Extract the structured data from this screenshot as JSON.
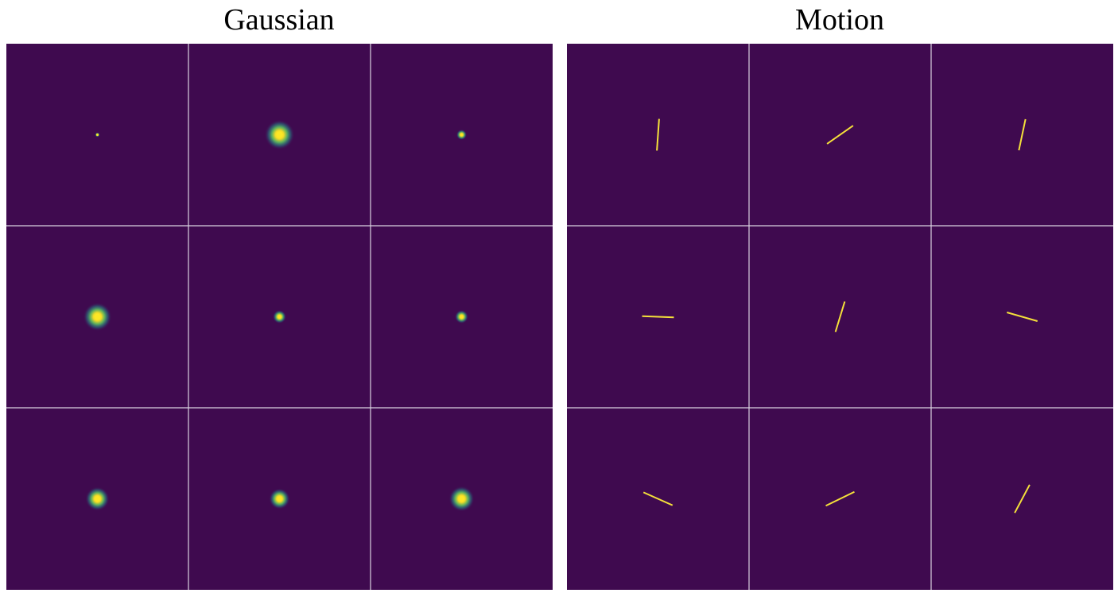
{
  "panels": [
    {
      "id": "gaussian",
      "title": "Gaussian",
      "kernel_type": "gaussian",
      "kernels": [
        {
          "row": 0,
          "col": 0,
          "sigma": 0.15
        },
        {
          "row": 0,
          "col": 1,
          "sigma": 1.0
        },
        {
          "row": 0,
          "col": 2,
          "sigma": 0.35
        },
        {
          "row": 1,
          "col": 0,
          "sigma": 0.95
        },
        {
          "row": 1,
          "col": 1,
          "sigma": 0.45
        },
        {
          "row": 1,
          "col": 2,
          "sigma": 0.45
        },
        {
          "row": 2,
          "col": 0,
          "sigma": 0.8
        },
        {
          "row": 2,
          "col": 1,
          "sigma": 0.7
        },
        {
          "row": 2,
          "col": 2,
          "sigma": 0.85
        }
      ]
    },
    {
      "id": "motion",
      "title": "Motion",
      "kernel_type": "motion",
      "kernels": [
        {
          "row": 0,
          "col": 0,
          "angle_deg": 86,
          "length": 1.0
        },
        {
          "row": 0,
          "col": 1,
          "angle_deg": 35,
          "length": 1.0
        },
        {
          "row": 0,
          "col": 2,
          "angle_deg": 78,
          "length": 1.0
        },
        {
          "row": 1,
          "col": 0,
          "angle_deg": -2,
          "length": 1.0
        },
        {
          "row": 1,
          "col": 1,
          "angle_deg": 73,
          "length": 1.0
        },
        {
          "row": 1,
          "col": 2,
          "angle_deg": -16,
          "length": 1.0
        },
        {
          "row": 2,
          "col": 0,
          "angle_deg": -24,
          "length": 1.0
        },
        {
          "row": 2,
          "col": 1,
          "angle_deg": 26,
          "length": 1.0
        },
        {
          "row": 2,
          "col": 2,
          "angle_deg": 62,
          "length": 1.0
        }
      ]
    }
  ],
  "colors": {
    "background": "#3f0a4f",
    "grid_line": "#d9d2e0",
    "kernel_peak": "#fde725",
    "kernel_mid": "#5ec962",
    "kernel_edge": "#21918c",
    "motion_line": "#f5e13a"
  }
}
